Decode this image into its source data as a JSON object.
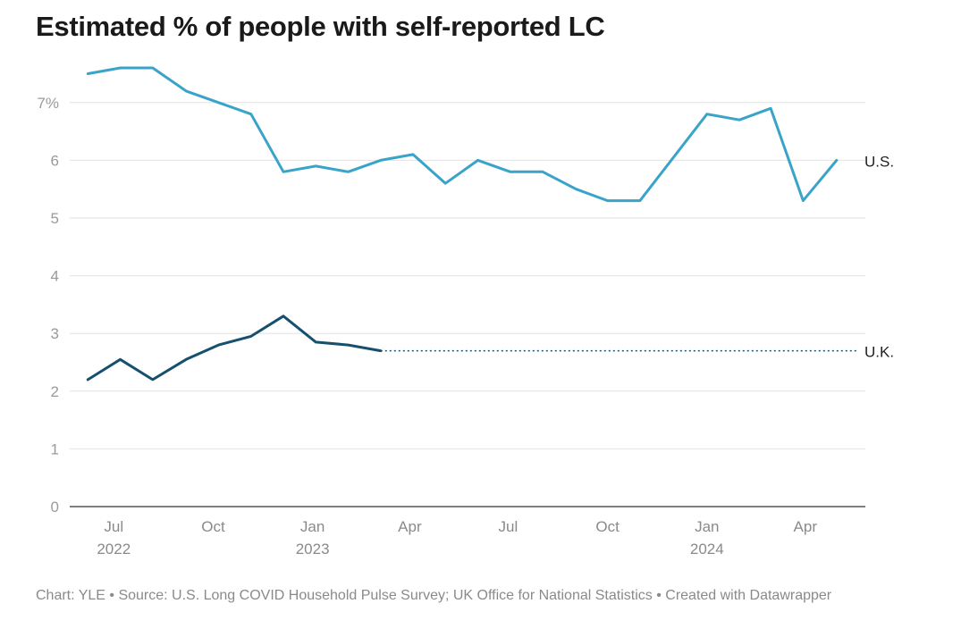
{
  "chart_data": {
    "type": "line",
    "title": "Estimated % of people with self-reported LC",
    "ylim": [
      0,
      7.5
    ],
    "yticks": [
      {
        "value": 0,
        "label": "0"
      },
      {
        "value": 1,
        "label": "1"
      },
      {
        "value": 2,
        "label": "2"
      },
      {
        "value": 3,
        "label": "3"
      },
      {
        "value": 4,
        "label": "4"
      },
      {
        "value": 5,
        "label": "5"
      },
      {
        "value": 6,
        "label": "6"
      },
      {
        "value": 7,
        "label": "7%"
      }
    ],
    "xlim": [
      "2022-06-01",
      "2024-05-20"
    ],
    "xticks": [
      {
        "date": "2022-07-01",
        "label": "Jul",
        "sublabel": "2022"
      },
      {
        "date": "2022-10-01",
        "label": "Oct",
        "sublabel": ""
      },
      {
        "date": "2023-01-01",
        "label": "Jan",
        "sublabel": "2023"
      },
      {
        "date": "2023-04-01",
        "label": "Apr",
        "sublabel": ""
      },
      {
        "date": "2023-07-01",
        "label": "Jul",
        "sublabel": ""
      },
      {
        "date": "2023-10-01",
        "label": "Oct",
        "sublabel": ""
      },
      {
        "date": "2024-01-01",
        "label": "Jan",
        "sublabel": "2024"
      },
      {
        "date": "2024-04-01",
        "label": "Apr",
        "sublabel": ""
      }
    ],
    "grid": true,
    "series": [
      {
        "name": "U.S.",
        "color": "#3aa3c9",
        "line_style": "solid",
        "points": [
          [
            "2022-06-07",
            7.5
          ],
          [
            "2022-07-07",
            7.6
          ],
          [
            "2022-08-06",
            7.6
          ],
          [
            "2022-09-06",
            7.2
          ],
          [
            "2022-10-06",
            7.0
          ],
          [
            "2022-11-05",
            6.8
          ],
          [
            "2022-12-05",
            5.8
          ],
          [
            "2023-01-04",
            5.9
          ],
          [
            "2023-02-03",
            5.8
          ],
          [
            "2023-03-05",
            6.0
          ],
          [
            "2023-04-04",
            6.1
          ],
          [
            "2023-05-04",
            5.6
          ],
          [
            "2023-06-03",
            6.0
          ],
          [
            "2023-07-03",
            5.8
          ],
          [
            "2023-08-02",
            5.8
          ],
          [
            "2023-09-02",
            5.5
          ],
          [
            "2023-10-01",
            5.3
          ],
          [
            "2023-10-31",
            5.3
          ],
          [
            "2024-01-01",
            6.8
          ],
          [
            "2024-01-31",
            6.7
          ],
          [
            "2024-02-29",
            6.9
          ],
          [
            "2024-03-30",
            5.3
          ],
          [
            "2024-04-30",
            6.0
          ]
        ]
      },
      {
        "name": "U.K.",
        "color": "#16506e",
        "line_style": "solid",
        "points": [
          [
            "2022-06-07",
            2.2
          ],
          [
            "2022-07-07",
            2.55
          ],
          [
            "2022-08-06",
            2.2
          ],
          [
            "2022-09-06",
            2.55
          ],
          [
            "2022-10-06",
            2.8
          ],
          [
            "2022-11-05",
            2.95
          ],
          [
            "2022-12-05",
            3.3
          ],
          [
            "2023-01-04",
            2.85
          ],
          [
            "2023-02-03",
            2.8
          ],
          [
            "2023-03-05",
            2.7
          ]
        ],
        "extension": {
          "line_style": "dotted",
          "from": [
            "2023-03-05",
            2.7
          ],
          "to": [
            "2024-05-20",
            2.7
          ]
        }
      }
    ],
    "footer": "Chart: YLE • Source: U.S. Long COVID Household Pulse Survey; UK Office for National Statistics • Created with Datawrapper"
  }
}
